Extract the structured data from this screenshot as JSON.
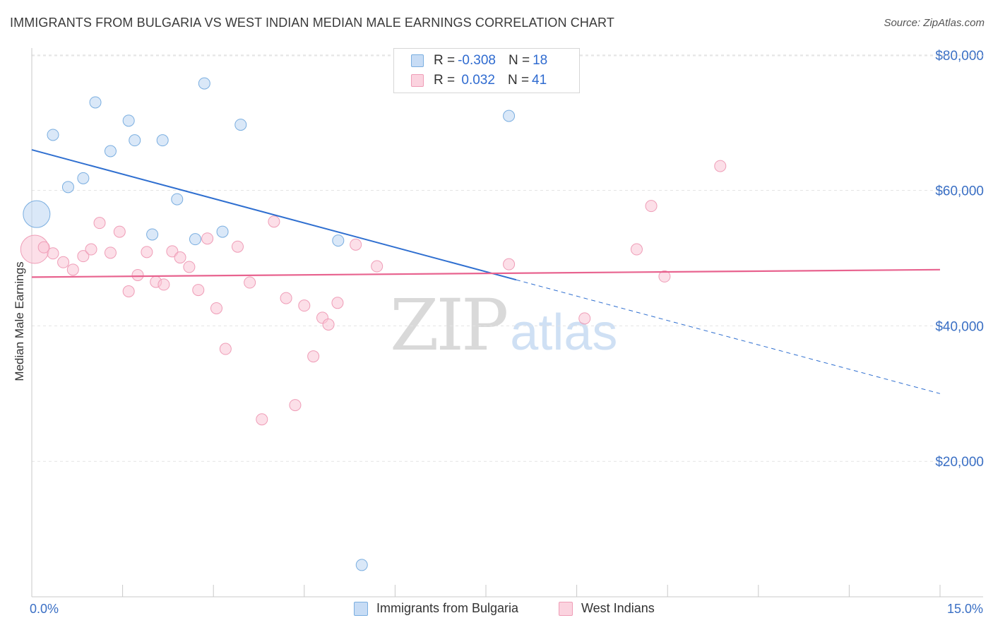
{
  "title": "IMMIGRANTS FROM BULGARIA VS WEST INDIAN MEDIAN MALE EARNINGS CORRELATION CHART",
  "source": "Source: ZipAtlas.com",
  "watermark": {
    "zip": "ZIP",
    "atlas": "atlas"
  },
  "legend": {
    "rows": [
      {
        "r_label": "R = ",
        "r_value": "-0.308",
        "n_label": "N = ",
        "n_value": "18"
      },
      {
        "r_label": "R = ",
        "r_value": " 0.032",
        "n_label": "N = ",
        "n_value": "41"
      }
    ]
  },
  "bottom_legend": [
    "Immigrants from Bulgaria",
    "West Indians"
  ],
  "x_axis": {
    "min_label": "0.0%",
    "max_label": "15.0%"
  },
  "colors": {
    "blue": "#7aaee0",
    "blue_line": "#2f6fd0",
    "pink": "#ef9db7",
    "pink_line": "#e8638f",
    "axis_text": "#3a6fc4"
  },
  "chart_data": {
    "type": "scatter",
    "title": "IMMIGRANTS FROM BULGARIA VS WEST INDIAN MEDIAN MALE EARNINGS CORRELATION CHART",
    "xlabel": "",
    "ylabel": "Median Male Earnings",
    "xlim": [
      0,
      15
    ],
    "ylim": [
      0,
      82000
    ],
    "y_ticks": [
      20000,
      40000,
      60000,
      80000
    ],
    "y_tick_labels": [
      "$20,000",
      "$40,000",
      "$60,000",
      "$80,000"
    ],
    "series": [
      {
        "name": "Immigrants from Bulgaria",
        "r": -0.308,
        "n": 18,
        "trend": {
          "x0": 0,
          "y0": 66000,
          "x1": 15,
          "y1": 30000,
          "solid_until_x": 8.0
        },
        "points": [
          {
            "x": 0.08,
            "y": 56500,
            "big": true
          },
          {
            "x": 0.35,
            "y": 68200
          },
          {
            "x": 0.6,
            "y": 60500
          },
          {
            "x": 0.85,
            "y": 61800
          },
          {
            "x": 1.05,
            "y": 73000
          },
          {
            "x": 1.3,
            "y": 65800
          },
          {
            "x": 1.6,
            "y": 70300
          },
          {
            "x": 1.7,
            "y": 67400
          },
          {
            "x": 1.99,
            "y": 53500
          },
          {
            "x": 2.16,
            "y": 67400
          },
          {
            "x": 2.4,
            "y": 58700
          },
          {
            "x": 2.7,
            "y": 52800
          },
          {
            "x": 2.85,
            "y": 75800
          },
          {
            "x": 3.15,
            "y": 53900
          },
          {
            "x": 3.45,
            "y": 69700
          },
          {
            "x": 5.06,
            "y": 52600
          },
          {
            "x": 5.45,
            "y": 4700
          },
          {
            "x": 7.88,
            "y": 71000
          }
        ]
      },
      {
        "name": "West Indians",
        "r": 0.032,
        "n": 41,
        "trend": {
          "x0": 0,
          "y0": 47200,
          "x1": 15,
          "y1": 48300
        },
        "points": [
          {
            "x": 0.05,
            "y": 51300,
            "big": true
          },
          {
            "x": 0.2,
            "y": 51600
          },
          {
            "x": 0.35,
            "y": 50700
          },
          {
            "x": 0.52,
            "y": 49400
          },
          {
            "x": 0.68,
            "y": 48300
          },
          {
            "x": 0.85,
            "y": 50300
          },
          {
            "x": 0.98,
            "y": 51300
          },
          {
            "x": 1.12,
            "y": 55200
          },
          {
            "x": 1.3,
            "y": 50800
          },
          {
            "x": 1.45,
            "y": 53900
          },
          {
            "x": 1.6,
            "y": 45100
          },
          {
            "x": 1.75,
            "y": 47500
          },
          {
            "x": 1.9,
            "y": 50900
          },
          {
            "x": 2.05,
            "y": 46500
          },
          {
            "x": 2.18,
            "y": 46100
          },
          {
            "x": 2.32,
            "y": 51000
          },
          {
            "x": 2.45,
            "y": 50100
          },
          {
            "x": 2.6,
            "y": 48700
          },
          {
            "x": 2.75,
            "y": 45300
          },
          {
            "x": 2.9,
            "y": 52900
          },
          {
            "x": 3.05,
            "y": 42600
          },
          {
            "x": 3.2,
            "y": 36600
          },
          {
            "x": 3.4,
            "y": 51700
          },
          {
            "x": 3.6,
            "y": 46400
          },
          {
            "x": 3.8,
            "y": 26200
          },
          {
            "x": 4.0,
            "y": 55400
          },
          {
            "x": 4.2,
            "y": 44100
          },
          {
            "x": 4.35,
            "y": 28300
          },
          {
            "x": 4.5,
            "y": 43000
          },
          {
            "x": 4.65,
            "y": 35500
          },
          {
            "x": 4.8,
            "y": 41200
          },
          {
            "x": 4.9,
            "y": 40200
          },
          {
            "x": 5.05,
            "y": 43400
          },
          {
            "x": 5.35,
            "y": 52000
          },
          {
            "x": 5.7,
            "y": 48800
          },
          {
            "x": 7.88,
            "y": 49100
          },
          {
            "x": 9.13,
            "y": 41100
          },
          {
            "x": 9.99,
            "y": 51300
          },
          {
            "x": 10.23,
            "y": 57700
          },
          {
            "x": 10.45,
            "y": 47300
          },
          {
            "x": 11.37,
            "y": 63600
          }
        ]
      }
    ]
  }
}
